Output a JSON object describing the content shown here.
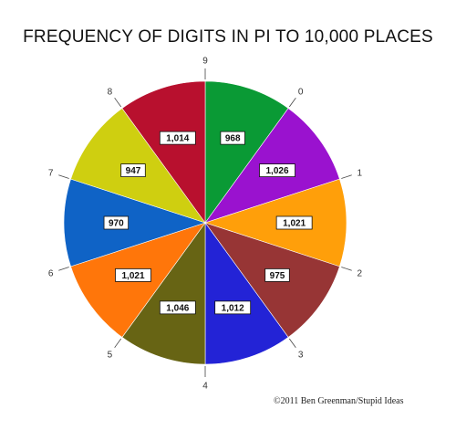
{
  "chart_data": {
    "type": "pie",
    "title": "FREQUENCY OF DIGITS IN PI TO 10,000 PLACES",
    "categories": [
      "0",
      "1",
      "2",
      "3",
      "4",
      "5",
      "6",
      "7",
      "8",
      "9"
    ],
    "values": [
      968,
      1026,
      1021,
      975,
      1012,
      1046,
      1021,
      970,
      947,
      1014
    ],
    "value_labels": [
      "968",
      "1,026",
      "1,021",
      "975",
      "1,012",
      "1,046",
      "1,021",
      "970",
      "947",
      "1,014"
    ],
    "colors": [
      "#0a9a35",
      "#9a12cf",
      "#ff9f0a",
      "#973535",
      "#2323d6",
      "#676414",
      "#ff760a",
      "#0f63c6",
      "#cfcf10",
      "#b8102e"
    ],
    "legend": "none"
  },
  "credit": "©2011 Ben Greenman/Stupid Ideas"
}
